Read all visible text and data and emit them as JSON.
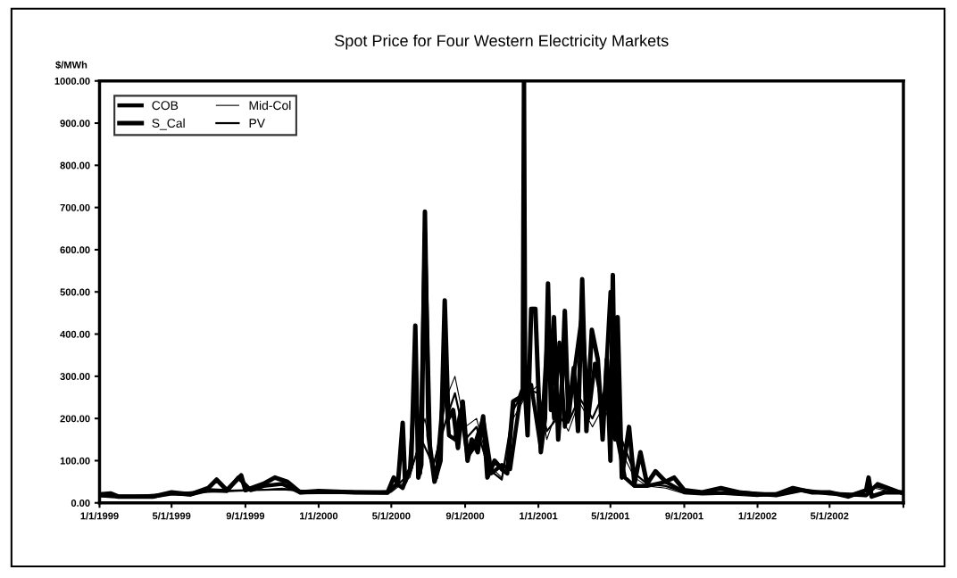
{
  "chart_data": {
    "type": "line",
    "title": "Spot Price for Four Western Electricity Markets",
    "ylabel": "$/MWh",
    "xlim": [
      "1999-01-01",
      "2002-09-01"
    ],
    "xticks": [
      {
        "value": "1999-01-01",
        "label": "1/1/1999"
      },
      {
        "value": "1999-05-01",
        "label": "5/1/1999"
      },
      {
        "value": "1999-09-01",
        "label": "9/1/1999"
      },
      {
        "value": "2000-01-01",
        "label": "1/1/2000"
      },
      {
        "value": "2000-05-01",
        "label": "5/1/2000"
      },
      {
        "value": "2000-09-01",
        "label": "9/1/2000"
      },
      {
        "value": "2001-01-01",
        "label": "1/1/2001"
      },
      {
        "value": "2001-05-01",
        "label": "5/1/2001"
      },
      {
        "value": "2001-09-01",
        "label": "9/1/2001"
      },
      {
        "value": "2002-01-01",
        "label": "1/1/2002"
      },
      {
        "value": "2002-05-01",
        "label": "5/1/2002"
      },
      {
        "value": "2002-09-01",
        "label": null
      }
    ],
    "ylim": [
      0,
      1000
    ],
    "yticks": [
      {
        "value": 0,
        "label": "0.00"
      },
      {
        "value": 100,
        "label": "100.00"
      },
      {
        "value": 200,
        "label": "200.00"
      },
      {
        "value": 300,
        "label": "300.00"
      },
      {
        "value": 400,
        "label": "400.00"
      },
      {
        "value": 500,
        "label": "500.00"
      },
      {
        "value": 600,
        "label": "600.00"
      },
      {
        "value": 700,
        "label": "700.00"
      },
      {
        "value": 800,
        "label": "800.00"
      },
      {
        "value": 900,
        "label": "900.00"
      },
      {
        "value": 1000,
        "label": "1000.00"
      }
    ],
    "grid": false,
    "legend": "top left",
    "marker": "none",
    "line_style": "solid",
    "series": [
      {
        "name": "COB",
        "color": "#000000",
        "x": [
          "1999-01-01",
          "1999-02-01",
          "1999-04-01",
          "1999-05-01",
          "1999-06-01",
          "1999-07-01",
          "1999-08-01",
          "1999-08-20",
          "1999-09-10",
          "1999-10-01",
          "1999-11-01",
          "1999-12-01",
          "2000-02-01",
          "2000-04-25",
          "2000-05-10",
          "2000-05-20",
          "2000-06-01",
          "2000-06-10",
          "2000-06-18",
          "2000-06-26",
          "2000-07-05",
          "2000-07-15",
          "2000-07-29",
          "2000-08-05",
          "2000-08-15",
          "2000-08-25",
          "2000-09-05",
          "2000-09-15",
          "2000-10-01",
          "2000-10-15",
          "2000-11-01",
          "2000-11-15",
          "2000-12-01",
          "2000-12-10",
          "2000-12-20",
          "2001-01-05",
          "2001-01-17",
          "2001-01-27",
          "2001-02-05",
          "2001-02-14",
          "2001-02-25",
          "2001-03-15",
          "2001-03-25",
          "2001-04-05",
          "2001-04-20",
          "2001-05-01",
          "2001-05-13",
          "2001-05-25",
          "2001-06-10",
          "2001-07-01",
          "2001-08-01",
          "2001-09-01",
          "2001-10-01",
          "2001-12-01",
          "2002-02-01",
          "2002-03-15",
          "2002-05-01",
          "2002-07-01",
          "2002-07-20",
          "2002-09-01"
        ],
        "values": [
          18,
          15,
          15,
          22,
          20,
          30,
          28,
          60,
          30,
          40,
          45,
          25,
          26,
          24,
          45,
          35,
          80,
          300,
          70,
          640,
          110,
          60,
          300,
          160,
          150,
          220,
          110,
          130,
          200,
          70,
          90,
          80,
          240,
          260,
          280,
          130,
          420,
          200,
          380,
          180,
          260,
          450,
          200,
          330,
          210,
          500,
          150,
          60,
          40,
          40,
          50,
          25,
          22,
          25,
          18,
          30,
          22,
          18,
          45,
          22
        ]
      },
      {
        "name": "S_Cal",
        "color": "#000000",
        "x": [
          "1999-01-01",
          "1999-01-20",
          "1999-02-01",
          "1999-04-01",
          "1999-05-01",
          "1999-06-01",
          "1999-07-01",
          "1999-07-15",
          "1999-08-01",
          "1999-08-25",
          "1999-09-01",
          "1999-10-01",
          "1999-10-20",
          "1999-11-10",
          "1999-12-01",
          "2000-01-01",
          "2000-03-01",
          "2000-04-25",
          "2000-05-05",
          "2000-05-12",
          "2000-05-20",
          "2000-05-24",
          "2000-06-03",
          "2000-06-10",
          "2000-06-15",
          "2000-06-20",
          "2000-06-26",
          "2000-07-02",
          "2000-07-12",
          "2000-07-22",
          "2000-07-29",
          "2000-08-04",
          "2000-08-12",
          "2000-08-20",
          "2000-08-28",
          "2000-09-05",
          "2000-09-12",
          "2000-09-22",
          "2000-10-01",
          "2000-10-08",
          "2000-10-20",
          "2000-11-01",
          "2000-11-10",
          "2000-11-20",
          "2000-12-01",
          "2000-12-06",
          "2000-12-08",
          "2000-12-10",
          "2000-12-14",
          "2000-12-20",
          "2000-12-27",
          "2001-01-05",
          "2001-01-12",
          "2001-01-17",
          "2001-01-22",
          "2001-01-27",
          "2001-02-03",
          "2001-02-10",
          "2001-02-14",
          "2001-02-20",
          "2001-03-01",
          "2001-03-08",
          "2001-03-15",
          "2001-03-22",
          "2001-03-31",
          "2001-04-10",
          "2001-04-18",
          "2001-04-25",
          "2001-05-01",
          "2001-05-05",
          "2001-05-09",
          "2001-05-13",
          "2001-05-20",
          "2001-06-01",
          "2001-06-10",
          "2001-06-20",
          "2001-07-01",
          "2001-07-15",
          "2001-08-01",
          "2001-08-15",
          "2001-09-01",
          "2001-10-01",
          "2001-11-01",
          "2001-12-01",
          "2002-01-01",
          "2002-02-01",
          "2002-03-01",
          "2002-04-01",
          "2002-05-01",
          "2002-06-01",
          "2002-07-01",
          "2002-07-05",
          "2002-07-10",
          "2002-08-01",
          "2002-09-01"
        ],
        "values": [
          20,
          22,
          15,
          15,
          25,
          20,
          35,
          55,
          30,
          65,
          30,
          45,
          60,
          50,
          25,
          28,
          25,
          25,
          60,
          45,
          190,
          50,
          85,
          420,
          60,
          90,
          690,
          160,
          50,
          100,
          480,
          200,
          220,
          130,
          240,
          100,
          150,
          120,
          205,
          60,
          100,
          80,
          70,
          240,
          250,
          270,
          1000,
          260,
          160,
          460,
          460,
          120,
          200,
          520,
          220,
          440,
          150,
          300,
          455,
          200,
          320,
          170,
          530,
          170,
          410,
          340,
          150,
          340,
          100,
          540,
          150,
          440,
          60,
          180,
          45,
          120,
          45,
          75,
          50,
          60,
          30,
          25,
          35,
          25,
          20,
          20,
          35,
          25,
          25,
          15,
          30,
          60,
          15,
          25,
          25
        ]
      },
      {
        "name": "Mid-Col",
        "color": "#000000",
        "x": [
          "1999-01-01",
          "1999-03-01",
          "1999-05-01",
          "1999-07-01",
          "1999-09-01",
          "1999-11-01",
          "2000-01-01",
          "2000-03-01",
          "2000-05-01",
          "2000-06-01",
          "2000-06-26",
          "2000-07-10",
          "2000-08-01",
          "2000-08-15",
          "2000-09-01",
          "2000-09-20",
          "2000-10-10",
          "2000-11-01",
          "2000-11-20",
          "2000-12-10",
          "2001-01-01",
          "2001-01-15",
          "2001-02-01",
          "2001-02-20",
          "2001-03-10",
          "2001-04-01",
          "2001-04-20",
          "2001-05-05",
          "2001-05-20",
          "2001-06-10",
          "2001-07-01",
          "2001-08-01",
          "2001-09-01",
          "2001-11-01",
          "2002-01-01",
          "2002-03-15",
          "2002-05-01",
          "2002-07-01",
          "2002-07-15",
          "2002-09-01"
        ],
        "values": [
          15,
          15,
          20,
          25,
          28,
          35,
          25,
          22,
          25,
          60,
          200,
          80,
          250,
          300,
          180,
          200,
          90,
          60,
          200,
          250,
          280,
          150,
          220,
          170,
          240,
          180,
          230,
          170,
          120,
          60,
          40,
          35,
          22,
          20,
          15,
          28,
          20,
          15,
          35,
          20
        ]
      },
      {
        "name": "PV",
        "color": "#000000",
        "x": [
          "1999-01-01",
          "1999-03-01",
          "1999-05-01",
          "1999-07-01",
          "1999-09-01",
          "1999-11-01",
          "2000-01-01",
          "2000-03-01",
          "2000-05-01",
          "2000-06-01",
          "2000-06-20",
          "2000-07-10",
          "2000-08-01",
          "2000-08-15",
          "2000-09-01",
          "2000-09-20",
          "2000-10-10",
          "2000-11-01",
          "2000-11-20",
          "2000-12-10",
          "2001-01-01",
          "2001-01-15",
          "2001-02-01",
          "2001-02-20",
          "2001-03-10",
          "2001-04-01",
          "2001-04-20",
          "2001-05-05",
          "2001-05-20",
          "2001-06-10",
          "2001-07-01",
          "2001-08-01",
          "2001-09-01",
          "2001-11-01",
          "2002-01-01",
          "2002-03-15",
          "2002-05-01",
          "2002-07-01",
          "2002-07-15",
          "2002-09-01"
        ],
        "values": [
          16,
          16,
          22,
          28,
          30,
          32,
          26,
          24,
          28,
          70,
          150,
          90,
          200,
          260,
          150,
          180,
          80,
          55,
          220,
          270,
          260,
          170,
          200,
          190,
          250,
          200,
          260,
          190,
          150,
          70,
          45,
          40,
          25,
          22,
          18,
          30,
          22,
          18,
          40,
          22
        ]
      }
    ]
  }
}
